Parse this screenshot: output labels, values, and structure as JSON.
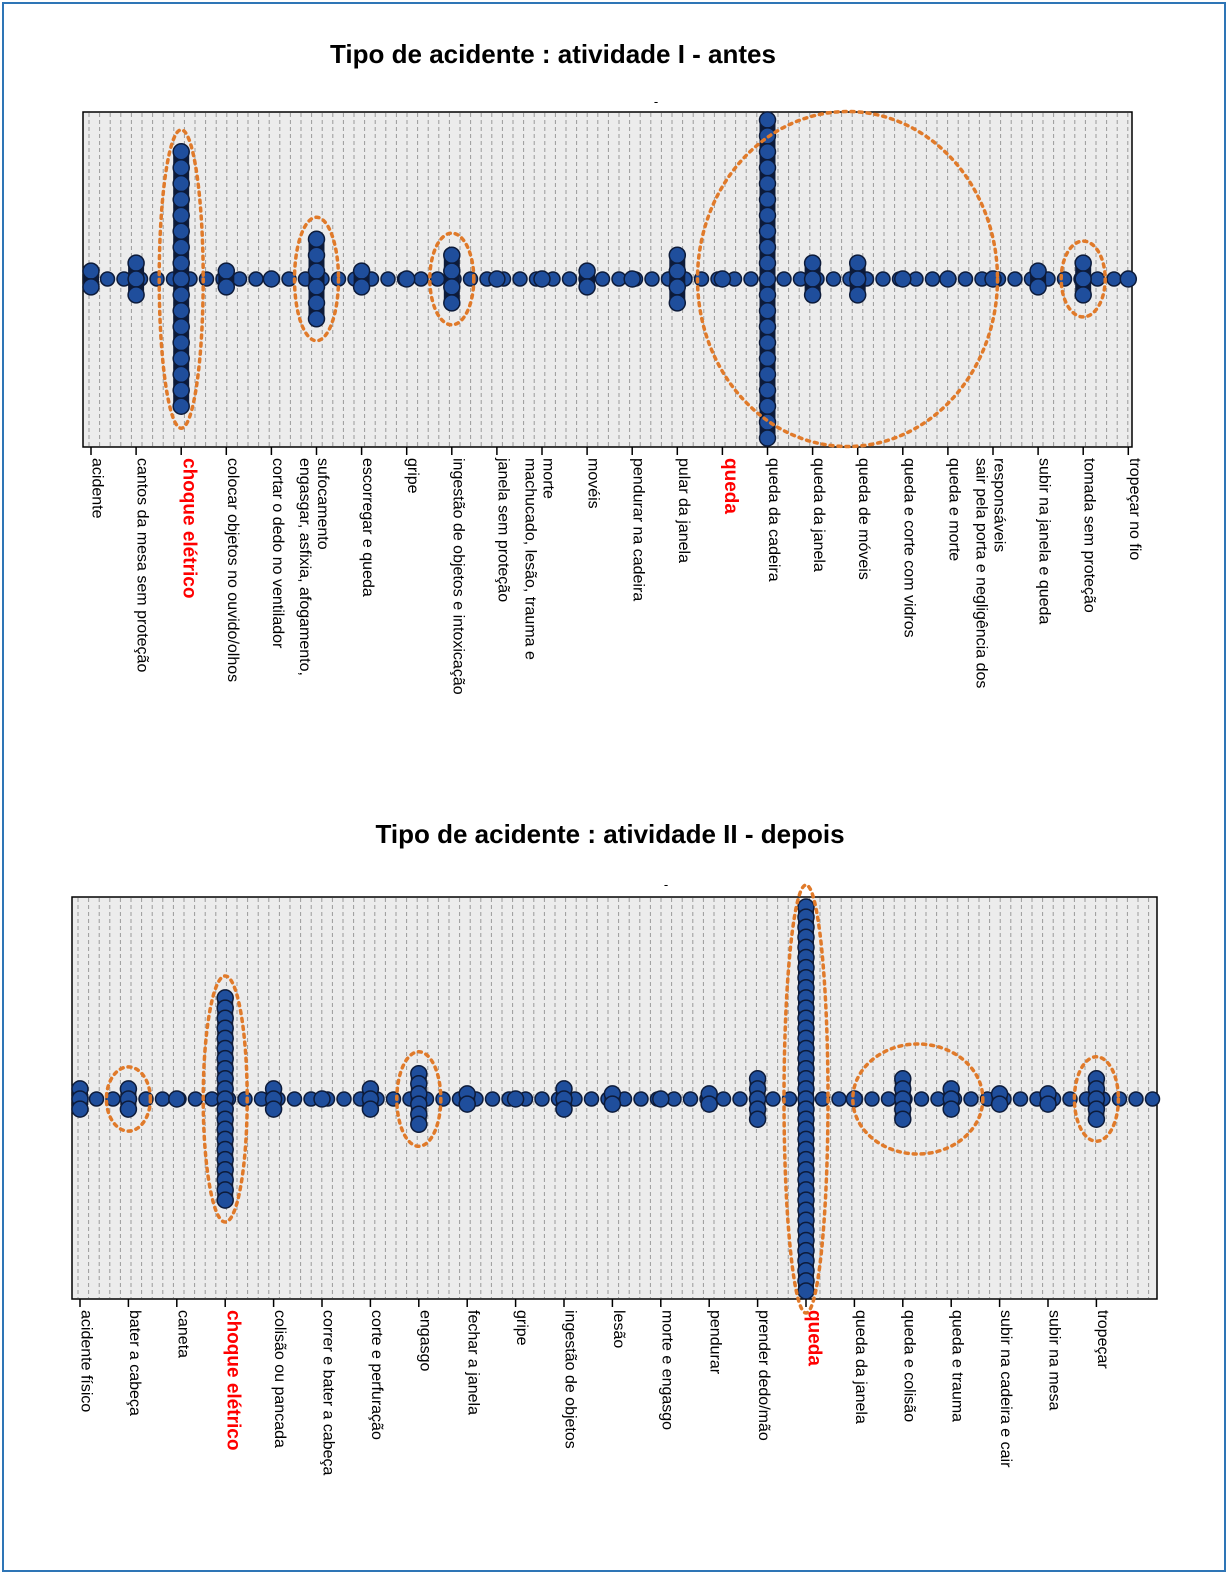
{
  "chart_data": [
    {
      "type": "dot_plot",
      "title": "Tipo de acidente : atividade I - antes",
      "subtitle": "-",
      "categories": [
        "acidente",
        "cantos da mesa sem proteção",
        "choque elétrico",
        "colocar objetos no ouvido/olhos",
        "cortar o dedo no ventilador",
        "engasgar, asfixia, afogamento, sufocamento",
        "escorregar e queda",
        "gripe",
        "ingestão de objetos e intoxicação",
        "janela sem proteção",
        "machucado, lesão, trauma e morte",
        "movéis",
        "pendurar na cadeira",
        "pular da janela",
        "queda",
        "queda da cadeira",
        "queda da janela",
        "queda de móveis",
        "queda e corte com vidros",
        "queda e morte",
        "sair pela porta e negligência dos responsáveis",
        "subir na janela e queda",
        "tomada sem proteção",
        "tropeçar no fio"
      ],
      "label_lines": [
        [
          "acidente"
        ],
        [
          "cantos da mesa sem proteção"
        ],
        [
          "choque elétrico"
        ],
        [
          "colocar objetos no ouvido/olhos"
        ],
        [
          "cortar o dedo no ventilador"
        ],
        [
          "engasgar, asfixia, afogamento,",
          "sufocamento"
        ],
        [
          "escorregar e queda"
        ],
        [
          "gripe"
        ],
        [
          "ingestão de objetos e intoxicação"
        ],
        [
          "janela sem proteção"
        ],
        [
          "machucado, lesão, trauma e",
          "morte"
        ],
        [
          "movéis"
        ],
        [
          "pendurar na cadeira"
        ],
        [
          "pular da janela"
        ],
        [
          "queda"
        ],
        [
          "queda da cadeira"
        ],
        [
          "queda da janela"
        ],
        [
          "queda de móveis"
        ],
        [
          "queda e corte com vidros"
        ],
        [
          "queda e morte"
        ],
        [
          "sair pela porta e negligência dos",
          "responsáveis"
        ],
        [
          "subir na janela e queda"
        ],
        [
          "tomada sem proteção"
        ],
        [
          "tropeçar no fio"
        ]
      ],
      "values": [
        2,
        3,
        17,
        2,
        1,
        6,
        2,
        1,
        4,
        1,
        1,
        2,
        1,
        4,
        1,
        21,
        3,
        3,
        1,
        1,
        1,
        2,
        3,
        1
      ],
      "highlight_categories": [
        "choque elétrico",
        "queda"
      ],
      "highlight_color": "#ff0000",
      "circled_categories": [
        "choque elétrico",
        "engasgar, asfixia, afogamento, sufocamento",
        "ingestão de objetos e intoxicação",
        "queda da cadeira",
        "queda da janela",
        "queda de móveis",
        "tomada sem proteção"
      ],
      "ymax": 21,
      "grid": true
    },
    {
      "type": "dot_plot",
      "title": "Tipo de acidente : atividade II - depois",
      "subtitle": "-",
      "categories": [
        "acidente físico",
        "bater a cabeça",
        "caneta",
        "choque elétrico",
        "colisão ou pancada",
        "correr e bater a cabeça",
        "corte e perfuração",
        "engasgo",
        "fechar a janela",
        "gripe",
        "ingestão de objetos",
        "lesão",
        "morte e engasgo",
        "pendurar",
        "prender dedo/mão",
        "queda",
        "queda da janela",
        "queda e colisão",
        "queda e trauma",
        "subir na cadeira e cair",
        "subir na mesa",
        "tropeçar"
      ],
      "label_lines": [
        [
          "acidente físico"
        ],
        [
          "bater a cabeça"
        ],
        [
          "caneta"
        ],
        [
          "choque elétrico"
        ],
        [
          "colisão ou pancada"
        ],
        [
          "correr e bater a cabeça"
        ],
        [
          "corte e perfuração"
        ],
        [
          "engasgo"
        ],
        [
          "fechar a janela"
        ],
        [
          "gripe"
        ],
        [
          "ingestão de objetos"
        ],
        [
          "lesão"
        ],
        [
          "morte e engasgo"
        ],
        [
          "pendurar"
        ],
        [
          "prender dedo/mão"
        ],
        [
          "queda"
        ],
        [
          "queda da janela"
        ],
        [
          "queda e colisão"
        ],
        [
          "queda e trauma"
        ],
        [
          "subir na cadeira e cair"
        ],
        [
          "subir na mesa"
        ],
        [
          "tropeçar"
        ]
      ],
      "values": [
        3,
        3,
        1,
        21,
        3,
        1,
        3,
        6,
        2,
        1,
        3,
        2,
        1,
        2,
        5,
        39,
        1,
        5,
        3,
        2,
        2,
        5
      ],
      "highlight_categories": [
        "choque elétrico",
        "queda"
      ],
      "highlight_color": "#ff0000",
      "circled_categories": [
        "bater a cabeça",
        "choque elétrico",
        "engasgo",
        "queda",
        "queda e colisão",
        "queda e trauma",
        "tropeçar"
      ],
      "ymax": 39,
      "grid": true
    }
  ],
  "colors": {
    "frame": "#2e75b6",
    "panel": "#ececec",
    "grid": "#9a9a9a",
    "dot_fill": "#1f4e9c",
    "dot_stroke": "#0d1b3a",
    "circle": "#e07a2a"
  }
}
